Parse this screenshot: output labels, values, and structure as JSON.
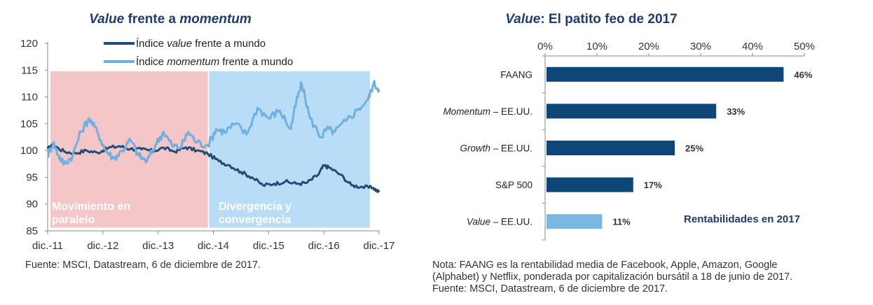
{
  "chart_data": [
    {
      "type": "line",
      "title_parts": [
        {
          "text": "Value",
          "italic": true
        },
        {
          "text": " frente a ",
          "italic": false
        },
        {
          "text": "momentum",
          "italic": true
        }
      ],
      "x_ticks": [
        "dic.-11",
        "dic.-12",
        "dic.-13",
        "dic.-14",
        "dic.-15",
        "dic.-16",
        "dic.-17"
      ],
      "y_ticks": [
        "120",
        "115",
        "110",
        "105",
        "100",
        "95",
        "90",
        "85"
      ],
      "ylim": [
        85,
        120
      ],
      "xlim": [
        0,
        6
      ],
      "shaded_regions": [
        {
          "label_lines": [
            "Movimiento en",
            "paralelo"
          ],
          "x_range": [
            0,
            2.9
          ],
          "color": "#f5c6c8"
        },
        {
          "label_lines": [
            "Divergencia y",
            "convergencia"
          ],
          "x_range": [
            2.9,
            6
          ],
          "color": "#b9dcf7"
        }
      ],
      "series": [
        {
          "name_parts": [
            {
              "text": "Índice ",
              "italic": false
            },
            {
              "text": "value",
              "italic": true
            },
            {
              "text": " frente a mundo",
              "italic": false
            }
          ],
          "color": "#1f4e79",
          "x": [
            0,
            0.1,
            0.3,
            0.5,
            0.7,
            0.9,
            1.1,
            1.3,
            1.5,
            1.7,
            1.9,
            2.1,
            2.3,
            2.5,
            2.7,
            2.9,
            3.1,
            3.3,
            3.5,
            3.7,
            3.9,
            4.1,
            4.3,
            4.5,
            4.7,
            4.9,
            5.0,
            5.1,
            5.3,
            5.5,
            5.7,
            5.9,
            6.0
          ],
          "y": [
            100.3,
            101.0,
            99.8,
            99.5,
            100.0,
            99.6,
            100.5,
            100.8,
            100.3,
            100.2,
            99.9,
            100.5,
            99.8,
            100.6,
            100.0,
            99.4,
            98.0,
            97.2,
            96.0,
            95.0,
            93.5,
            93.8,
            94.2,
            93.8,
            94.0,
            95.5,
            97.2,
            96.8,
            95.5,
            93.5,
            93.2,
            93.0,
            92.2
          ]
        },
        {
          "name_parts": [
            {
              "text": "Índice ",
              "italic": false
            },
            {
              "text": "momentum",
              "italic": true
            },
            {
              "text": " frente a mundo",
              "italic": false
            }
          ],
          "color": "#6fb0e0",
          "x": [
            0,
            0.1,
            0.2,
            0.3,
            0.45,
            0.6,
            0.75,
            0.9,
            1.05,
            1.2,
            1.35,
            1.5,
            1.65,
            1.8,
            1.95,
            2.1,
            2.25,
            2.4,
            2.55,
            2.7,
            2.9,
            3.05,
            3.2,
            3.4,
            3.6,
            3.8,
            4.0,
            4.2,
            4.4,
            4.5,
            4.6,
            4.75,
            4.95,
            5.05,
            5.2,
            5.4,
            5.6,
            5.8,
            5.9,
            6.0
          ],
          "y": [
            99.0,
            101.5,
            99.0,
            97.5,
            99.0,
            103.5,
            106.0,
            103.5,
            100.0,
            98.5,
            100.0,
            102.0,
            99.0,
            98.0,
            101.0,
            103.5,
            101.0,
            100.5,
            103.5,
            101.5,
            101.0,
            104.0,
            103.5,
            105.0,
            103.0,
            108.0,
            106.0,
            107.5,
            104.0,
            109.0,
            112.5,
            106.0,
            102.5,
            104.0,
            103.5,
            105.5,
            107.5,
            109.5,
            112.5,
            111.5
          ]
        }
      ],
      "source": "Fuente: MSCI, Datastream, 6 de diciembre de 2017."
    },
    {
      "type": "bar",
      "orientation": "horizontal",
      "title_parts": [
        {
          "text": "Value",
          "italic": true
        },
        {
          "text": ": El patito feo de 2017",
          "italic": false
        }
      ],
      "x_ticks": [
        "0%",
        "10%",
        "20%",
        "30%",
        "40%",
        "50%"
      ],
      "xlim": [
        0,
        50
      ],
      "categories": [
        {
          "parts": [
            {
              "text": "FAANG",
              "italic": false
            }
          ]
        },
        {
          "parts": [
            {
              "text": "Momentum",
              "italic": true
            },
            {
              "text": " – EE.UU.",
              "italic": false
            }
          ]
        },
        {
          "parts": [
            {
              "text": "Growth",
              "italic": true
            },
            {
              "text": " – EE.UU.",
              "italic": false
            }
          ]
        },
        {
          "parts": [
            {
              "text": "S&P 500",
              "italic": false
            }
          ]
        },
        {
          "parts": [
            {
              "text": "Value",
              "italic": true
            },
            {
              "text": " – EE.UU.",
              "italic": false
            }
          ]
        }
      ],
      "values": [
        46,
        33,
        25,
        17,
        11
      ],
      "value_labels": [
        "46%",
        "33%",
        "25%",
        "17%",
        "11%"
      ],
      "bar_colors": [
        "#0e4678",
        "#0e4678",
        "#0e4678",
        "#0e4678",
        "#7ab8e2"
      ],
      "subtitle": "Rentabilidades en 2017",
      "notes": [
        "Nota: FAANG es la rentabilidad media de Facebook, Apple, Amazon, Google",
        "(Alphabet) y Netflix, ponderada por capitalización bursátil a 18 de junio de 2017.",
        "Fuente: MSCI, Datastream, 6 de diciembre de 2017."
      ]
    }
  ]
}
